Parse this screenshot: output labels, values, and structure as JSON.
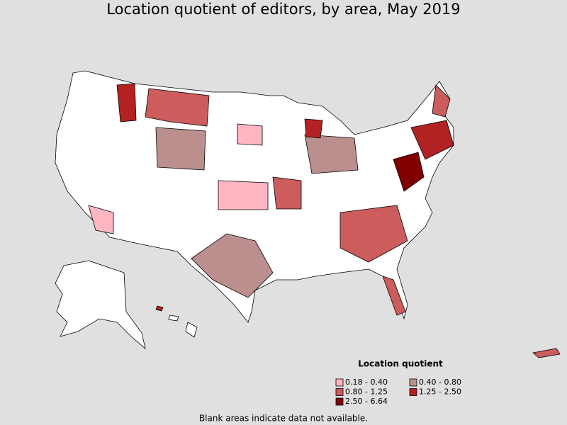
{
  "title": "Location quotient of editors, by area, May 2019",
  "legend": {
    "title": "Location quotient",
    "items": [
      {
        "label": "0.18 - 0.40",
        "color": "#ffb6c1"
      },
      {
        "label": "0.40 - 0.80",
        "color": "#bc8f8f"
      },
      {
        "label": "0.80 - 1.25",
        "color": "#cd5c5c"
      },
      {
        "label": "1.25 - 2.50",
        "color": "#b22222"
      },
      {
        "label": "2.50 - 6.64",
        "color": "#800000"
      }
    ]
  },
  "footnote": "Blank areas indicate data not available."
}
